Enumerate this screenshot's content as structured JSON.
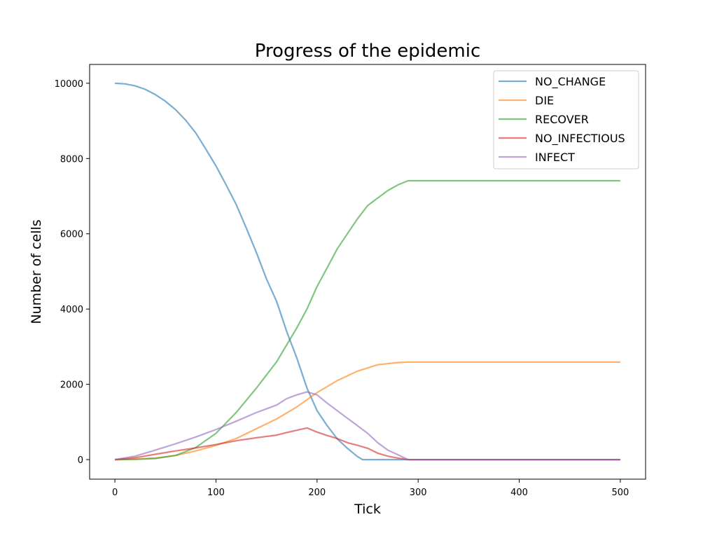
{
  "chart_data": {
    "type": "line",
    "title": "Progress of the epidemic",
    "xlabel": "Tick",
    "ylabel": "Number of cells",
    "xlim": [
      -25,
      525
    ],
    "ylim": [
      -520,
      10500
    ],
    "xticks": [
      0,
      100,
      200,
      300,
      400,
      500
    ],
    "yticks": [
      0,
      2000,
      4000,
      6000,
      8000,
      10000
    ],
    "grid": false,
    "legend_position": "top-right",
    "series": [
      {
        "name": "NO_CHANGE",
        "color": "#1f77b4",
        "points": [
          [
            0,
            10000
          ],
          [
            10,
            9985
          ],
          [
            20,
            9930
          ],
          [
            30,
            9840
          ],
          [
            40,
            9700
          ],
          [
            50,
            9520
          ],
          [
            60,
            9300
          ],
          [
            70,
            9020
          ],
          [
            80,
            8680
          ],
          [
            90,
            8250
          ],
          [
            100,
            7800
          ],
          [
            110,
            7300
          ],
          [
            120,
            6780
          ],
          [
            130,
            6150
          ],
          [
            140,
            5500
          ],
          [
            150,
            4800
          ],
          [
            160,
            4200
          ],
          [
            170,
            3400
          ],
          [
            180,
            2700
          ],
          [
            190,
            1900
          ],
          [
            200,
            1300
          ],
          [
            210,
            900
          ],
          [
            220,
            550
          ],
          [
            230,
            300
          ],
          [
            240,
            80
          ],
          [
            245,
            0
          ],
          [
            300,
            0
          ],
          [
            400,
            0
          ],
          [
            500,
            0
          ]
        ]
      },
      {
        "name": "DIE",
        "color": "#ff7f0e",
        "points": [
          [
            0,
            0
          ],
          [
            20,
            15
          ],
          [
            40,
            40
          ],
          [
            60,
            110
          ],
          [
            80,
            230
          ],
          [
            100,
            380
          ],
          [
            120,
            560
          ],
          [
            140,
            820
          ],
          [
            160,
            1080
          ],
          [
            180,
            1400
          ],
          [
            200,
            1780
          ],
          [
            220,
            2100
          ],
          [
            240,
            2350
          ],
          [
            260,
            2520
          ],
          [
            280,
            2580
          ],
          [
            290,
            2590
          ],
          [
            400,
            2590
          ],
          [
            500,
            2590
          ]
        ]
      },
      {
        "name": "RECOVER",
        "color": "#2ca02c",
        "points": [
          [
            0,
            0
          ],
          [
            20,
            5
          ],
          [
            40,
            30
          ],
          [
            60,
            110
          ],
          [
            80,
            320
          ],
          [
            100,
            700
          ],
          [
            120,
            1250
          ],
          [
            140,
            1900
          ],
          [
            160,
            2600
          ],
          [
            180,
            3500
          ],
          [
            190,
            4000
          ],
          [
            200,
            4600
          ],
          [
            210,
            5100
          ],
          [
            220,
            5600
          ],
          [
            230,
            6000
          ],
          [
            240,
            6400
          ],
          [
            250,
            6750
          ],
          [
            260,
            6950
          ],
          [
            270,
            7150
          ],
          [
            280,
            7300
          ],
          [
            290,
            7410
          ],
          [
            300,
            7410
          ],
          [
            400,
            7410
          ],
          [
            500,
            7410
          ]
        ]
      },
      {
        "name": "NO_INFECTIOUS",
        "color": "#d62728",
        "points": [
          [
            0,
            0
          ],
          [
            20,
            50
          ],
          [
            40,
            140
          ],
          [
            60,
            230
          ],
          [
            80,
            310
          ],
          [
            100,
            400
          ],
          [
            120,
            500
          ],
          [
            140,
            580
          ],
          [
            160,
            650
          ],
          [
            170,
            720
          ],
          [
            180,
            780
          ],
          [
            190,
            840
          ],
          [
            200,
            730
          ],
          [
            210,
            640
          ],
          [
            220,
            560
          ],
          [
            230,
            450
          ],
          [
            240,
            380
          ],
          [
            250,
            300
          ],
          [
            260,
            170
          ],
          [
            270,
            90
          ],
          [
            280,
            40
          ],
          [
            290,
            0
          ],
          [
            300,
            0
          ],
          [
            400,
            0
          ],
          [
            500,
            0
          ]
        ]
      },
      {
        "name": "INFECT",
        "color": "#9467bd",
        "points": [
          [
            0,
            0
          ],
          [
            20,
            90
          ],
          [
            40,
            250
          ],
          [
            60,
            420
          ],
          [
            80,
            600
          ],
          [
            100,
            800
          ],
          [
            120,
            1020
          ],
          [
            140,
            1250
          ],
          [
            160,
            1450
          ],
          [
            170,
            1620
          ],
          [
            180,
            1720
          ],
          [
            190,
            1800
          ],
          [
            200,
            1720
          ],
          [
            210,
            1500
          ],
          [
            220,
            1300
          ],
          [
            230,
            1100
          ],
          [
            240,
            900
          ],
          [
            250,
            700
          ],
          [
            260,
            450
          ],
          [
            270,
            250
          ],
          [
            280,
            130
          ],
          [
            290,
            0
          ],
          [
            300,
            0
          ],
          [
            400,
            0
          ],
          [
            500,
            0
          ]
        ]
      }
    ]
  }
}
